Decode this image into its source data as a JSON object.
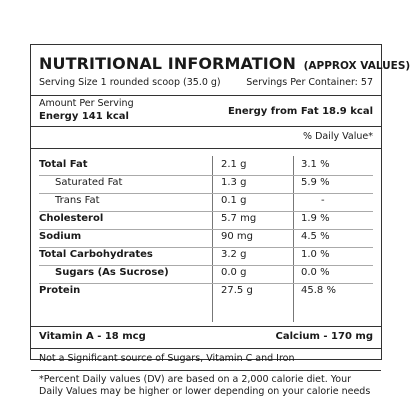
{
  "header": {
    "title": "NUTRITIONAL INFORMATION",
    "title_suffix": "(APPROX VALUES)",
    "serving_size": "Serving Size 1 rounded scoop (35.0 g)",
    "servings_per_container": "Servings Per Container: 57"
  },
  "amount": {
    "label": "Amount Per Serving",
    "energy": "Energy 141 kcal",
    "energy_from_fat": "Energy from Fat 18.9 kcal"
  },
  "daily_value_header": "% Daily Value*",
  "nutrients": [
    {
      "name": "Total Fat",
      "amount": "2.1 g",
      "dv": "3.1 %"
    },
    {
      "name": "Saturated Fat",
      "amount": "1.3 g",
      "dv": "5.9 %"
    },
    {
      "name": "Trans Fat",
      "amount": "0.1 g",
      "dv": "-"
    },
    {
      "name": "Cholesterol",
      "amount": "5.7 mg",
      "dv": "1.9 %"
    },
    {
      "name": "Sodium",
      "amount": "90 mg",
      "dv": "4.5 %"
    },
    {
      "name": "Total Carbohydrates",
      "amount": "3.2 g",
      "dv": "1.0 %"
    },
    {
      "name": "Sugars (As Sucrose)",
      "amount": "0.0 g",
      "dv": "0.0 %"
    },
    {
      "name": "Protein",
      "amount": "27.5 g",
      "dv": "45.8 %"
    }
  ],
  "vitamins": {
    "vitamin_a": "Vitamin A - 18 mcg",
    "calcium": "Calcium - 170 mg"
  },
  "not_significant": "Not a Significant source of Sugars, Vitamin C and Iron",
  "footnote": "*Percent Daily values (DV) are based on a 2,000 calorie diet. Your Daily Values may be higher or lower depending on your calorie needs"
}
